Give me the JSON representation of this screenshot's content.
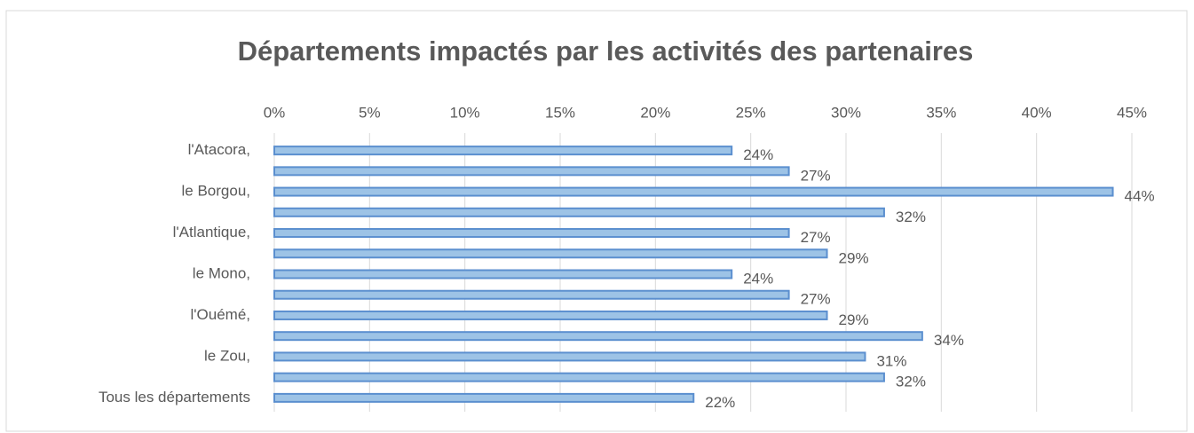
{
  "chart_data": {
    "type": "bar",
    "orientation": "horizontal",
    "title": "Départements impactés par les activités des partenaires",
    "categories": [
      "l'Atacora,",
      null,
      "le Borgou,",
      null,
      "l'Atlantique,",
      null,
      "le Mono,",
      null,
      "l'Ouémé,",
      null,
      "le Zou,",
      null,
      "Tous les départements"
    ],
    "values": [
      24,
      27,
      44,
      32,
      27,
      29,
      24,
      27,
      29,
      34,
      31,
      32,
      22
    ],
    "value_labels": [
      "24%",
      "27%",
      "44%",
      "32%",
      "27%",
      "29%",
      "24%",
      "27%",
      "29%",
      "34%",
      "31%",
      "32%",
      "22%"
    ],
    "color": "#9dc3e6",
    "xlim": [
      0,
      45
    ],
    "xticks": [
      {
        "value": 0,
        "label": "0%"
      },
      {
        "value": 5,
        "label": "5%"
      },
      {
        "value": 10,
        "label": "10%"
      },
      {
        "value": 15,
        "label": "15%"
      },
      {
        "value": 20,
        "label": "20%"
      },
      {
        "value": 25,
        "label": "25%"
      },
      {
        "value": 30,
        "label": "30%"
      },
      {
        "value": 35,
        "label": "35%"
      },
      {
        "value": 40,
        "label": "40%"
      },
      {
        "value": 45,
        "label": "45%"
      }
    ],
    "grid": true
  }
}
